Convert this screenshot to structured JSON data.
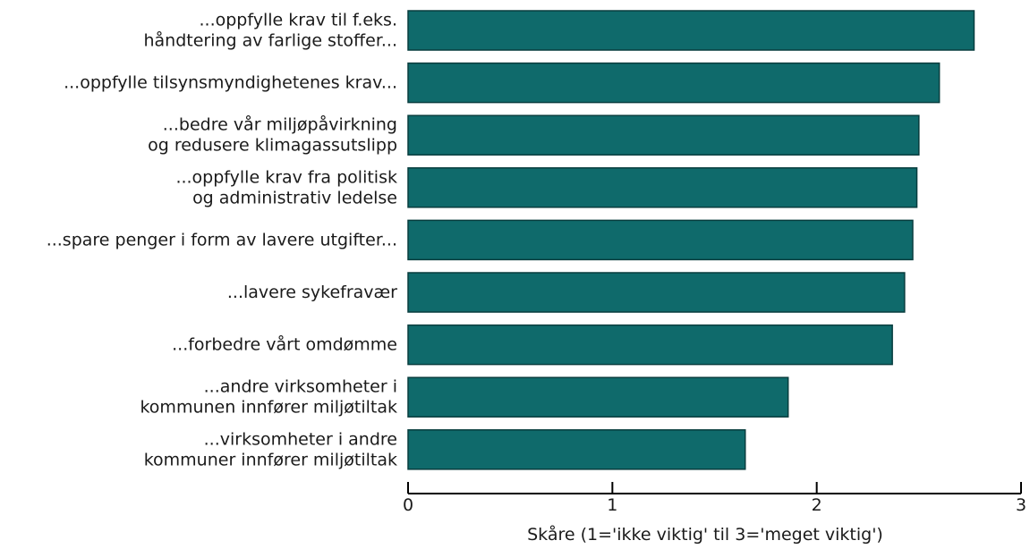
{
  "chart_data": {
    "type": "bar",
    "orientation": "horizontal",
    "categories": [
      [
        "...oppfylle krav til f.eks.",
        "håndtering av farlige stoffer..."
      ],
      [
        "...oppfylle tilsynsmyndighetenes krav..."
      ],
      [
        "...bedre vår miljøpåvirkning",
        "og redusere klimagassutslipp"
      ],
      [
        "...oppfylle krav fra politisk",
        "og administrativ ledelse"
      ],
      [
        "...spare penger i form av lavere utgifter..."
      ],
      [
        "...lavere sykefravær"
      ],
      [
        "...forbedre vårt omdømme"
      ],
      [
        "...andre virksomheter i",
        "kommunen innfører miljøtiltak"
      ],
      [
        "...virksomheter i andre",
        "kommuner innfører miljøtiltak"
      ]
    ],
    "values": [
      2.77,
      2.6,
      2.5,
      2.49,
      2.47,
      2.43,
      2.37,
      1.86,
      1.65
    ],
    "xlim": [
      0,
      3
    ],
    "xticks": [
      "0",
      "1",
      "2",
      "3"
    ],
    "xlabel": "Skåre (1='ikke viktig' til 3='meget viktig')",
    "ylabel": "",
    "title": "",
    "bar_color": "#0f6a6b",
    "bar_edge_color": "#083d3e",
    "grid": false
  }
}
